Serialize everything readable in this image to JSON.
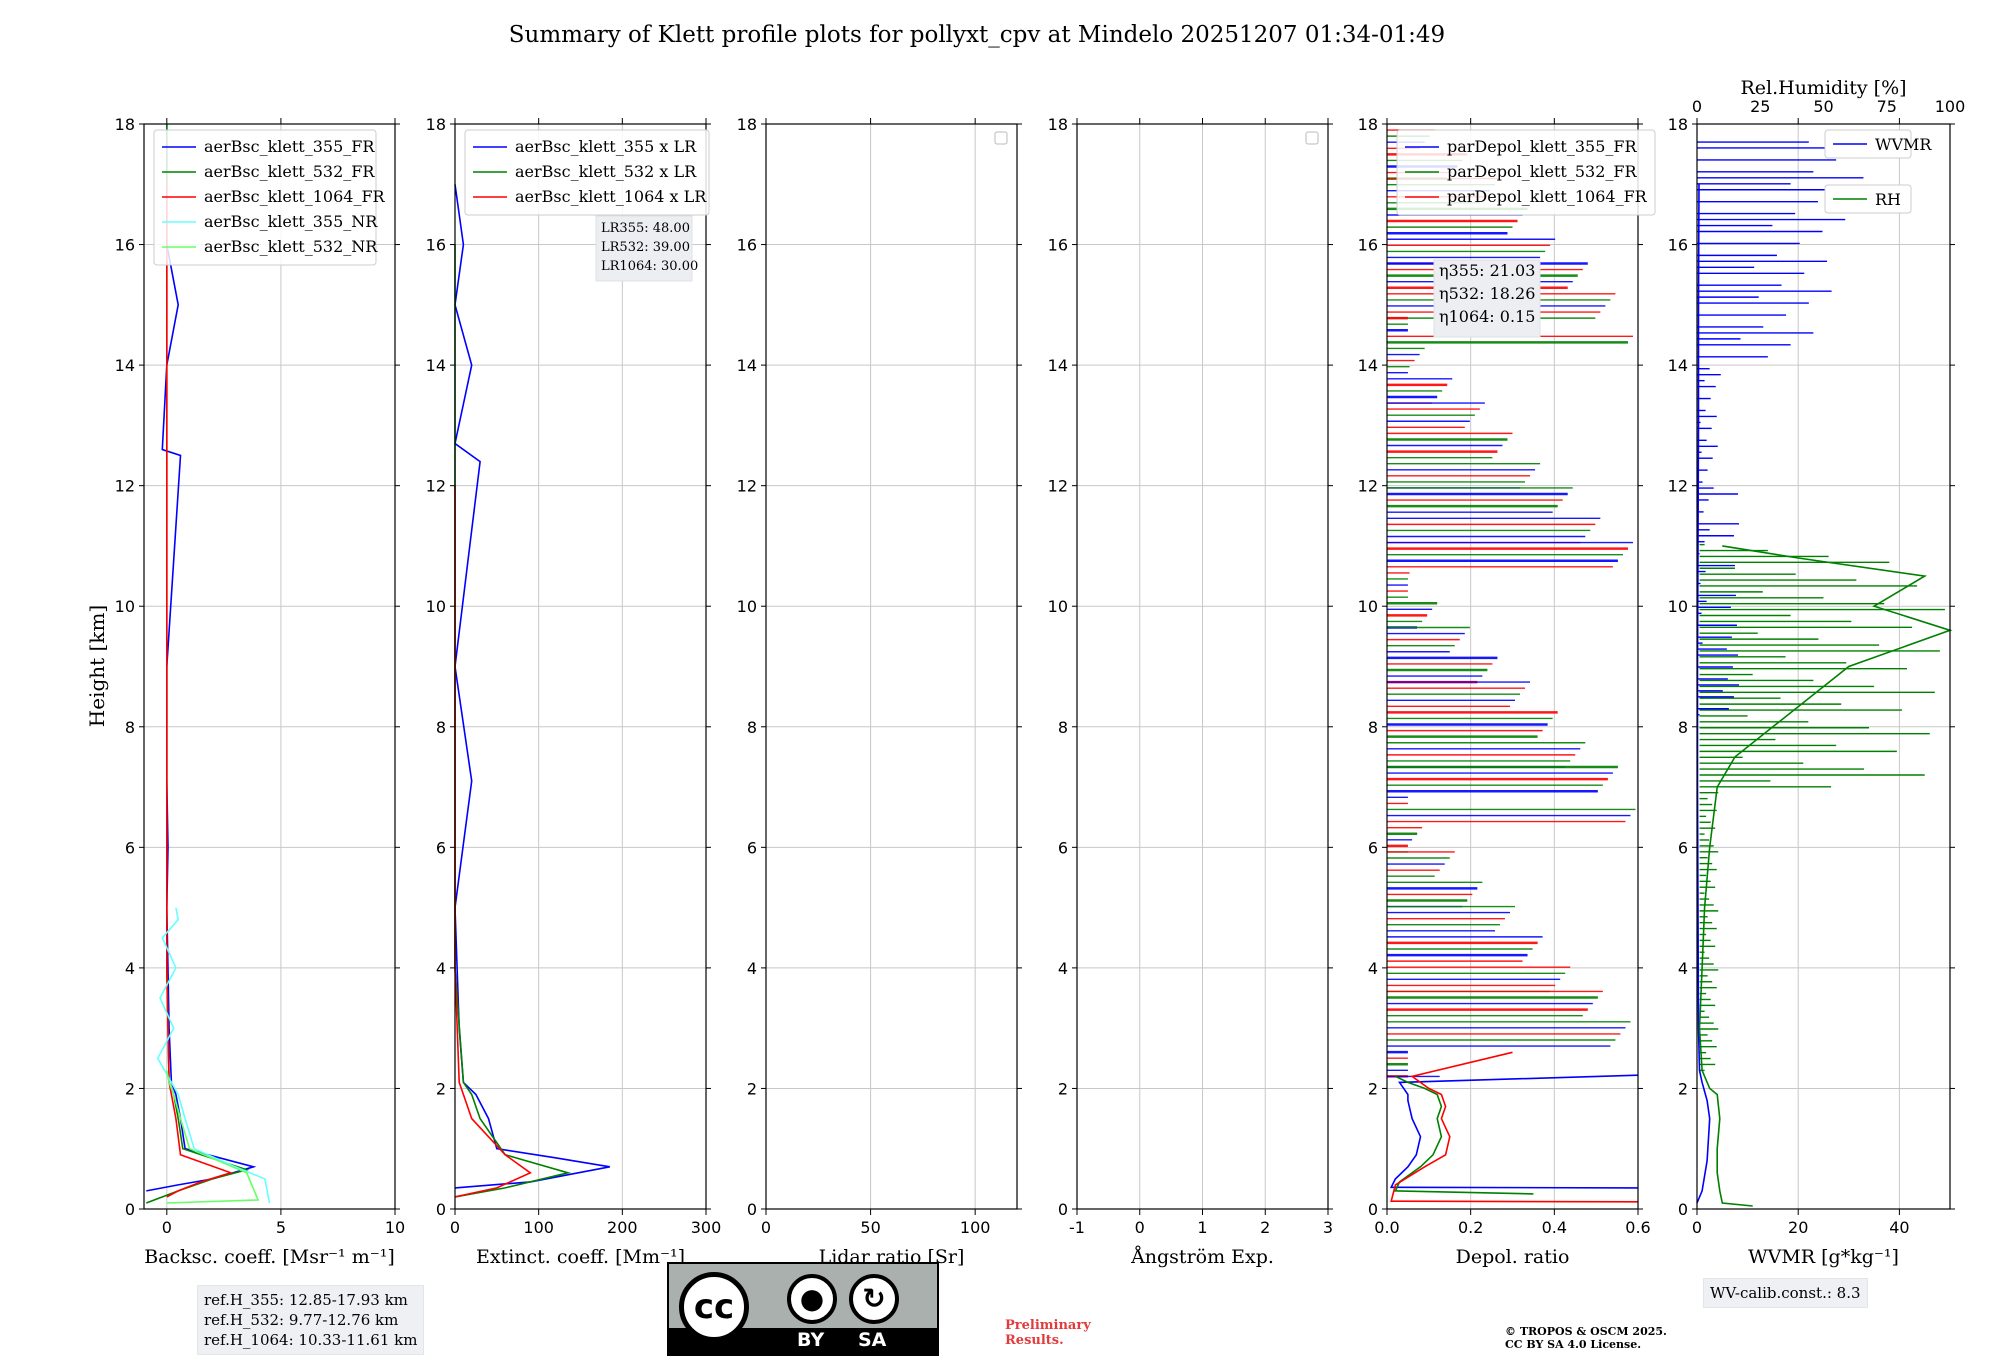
{
  "title": "Summary of Klett profile plots for pollyxt_cpv at Mindelo 20251207 01:34-01:49",
  "y_label": "Height [km]",
  "ref_heights": [
    "ref.H_355: 12.85-17.93 km",
    "ref.H_532: 9.77-12.76 km",
    "ref.H_1064: 10.33-11.61 km"
  ],
  "wv_calib": "WV-calib.const.: 8.3",
  "preliminary": [
    "Preliminary",
    "Results."
  ],
  "copyright": [
    "© TROPOS & OSCM 2025.",
    "CC BY SA 4.0 License."
  ],
  "license_badge": {
    "cc": "cc",
    "by": "BY",
    "sa": "SA"
  },
  "colors": {
    "blue": "#0000ff",
    "green": "#008000",
    "red": "#ff0000",
    "cyan": "#66ffff",
    "lightgreen": "#66ff66"
  },
  "chart_data": [
    {
      "type": "line",
      "xlabel": "Backsc. coeff. [Msr⁻¹ m⁻¹]",
      "xlim": [
        -1,
        10
      ],
      "ylim": [
        0,
        18
      ],
      "xticks": [
        0,
        5,
        10
      ],
      "yticks": [
        0,
        2,
        4,
        6,
        8,
        10,
        12,
        14,
        16,
        18
      ],
      "legend": "top-left",
      "series": [
        {
          "name": "aerBsc_klett_355_FR",
          "color": "blue",
          "x": [
            -0.9,
            0.5,
            2.0,
            3.8,
            0.8,
            0.6,
            0.4,
            0.2,
            0.1,
            0.0,
            0.05,
            0.0,
            0.0,
            0.6,
            -0.2,
            0.0,
            0.5,
            0.0,
            0.0,
            0.0
          ],
          "y": [
            0.3,
            0.4,
            0.5,
            0.7,
            1.0,
            1.5,
            1.9,
            2.1,
            3.0,
            5.0,
            6.0,
            7.1,
            9.0,
            12.5,
            12.6,
            14.0,
            15.0,
            16.0,
            17.0,
            18.0
          ]
        },
        {
          "name": "aerBsc_klett_532_FR",
          "color": "green",
          "x": [
            -0.9,
            0.5,
            2.0,
            3.5,
            0.7,
            0.5,
            0.3,
            0.1,
            0.0,
            0.0,
            0.0,
            0.0,
            0.0
          ],
          "y": [
            0.1,
            0.3,
            0.5,
            0.65,
            1.0,
            1.5,
            1.9,
            2.1,
            4.0,
            8.0,
            12.0,
            16.0,
            18.0
          ]
        },
        {
          "name": "aerBsc_klett_1064_FR",
          "color": "red",
          "x": [
            0.0,
            0.5,
            1.5,
            2.8,
            0.6,
            0.4,
            0.2,
            0.1,
            0.0,
            0.0,
            0.0,
            0.0
          ],
          "y": [
            0.2,
            0.3,
            0.45,
            0.6,
            0.9,
            1.5,
            1.9,
            2.1,
            4.0,
            8.0,
            12.0,
            17.0
          ]
        },
        {
          "name": "aerBsc_klett_355_NR",
          "color": "cyan",
          "x": [
            4.5,
            4.3,
            3.0,
            1.2,
            0.8,
            0.5,
            0.2,
            -0.4,
            0.3,
            -0.3,
            0.4,
            -0.2,
            0.5,
            0.4
          ],
          "y": [
            0.1,
            0.5,
            0.7,
            1.0,
            1.5,
            1.9,
            2.1,
            2.5,
            3.0,
            3.5,
            4.0,
            4.5,
            4.8,
            5.0
          ]
        },
        {
          "name": "aerBsc_klett_532_NR",
          "color": "lightgreen",
          "x": [
            0.0,
            4.0,
            3.5,
            1.0,
            0.6,
            0.3,
            0.1,
            0.0
          ],
          "y": [
            0.1,
            0.15,
            0.6,
            1.0,
            1.5,
            1.9,
            2.1,
            2.3
          ]
        }
      ]
    },
    {
      "type": "line",
      "xlabel": "Extinct. coeff. [Mm⁻¹]",
      "xlim": [
        0,
        300
      ],
      "ylim": [
        0,
        18
      ],
      "xticks": [
        0,
        100,
        200,
        300
      ],
      "yticks": [
        0,
        2,
        4,
        6,
        8,
        10,
        12,
        14,
        16,
        18
      ],
      "legend": "top-left",
      "annotation": [
        "LR355: 48.00",
        "LR532: 39.00",
        "LR1064: 30.00"
      ],
      "series": [
        {
          "name": "aerBsc_klett_355 x LR",
          "color": "blue",
          "x": [
            0,
            90,
            185,
            120,
            50,
            40,
            25,
            10,
            5,
            0,
            20,
            0,
            30,
            0,
            20,
            0,
            10,
            0
          ],
          "y": [
            0.35,
            0.45,
            0.7,
            0.85,
            1.0,
            1.5,
            1.9,
            2.1,
            3.0,
            5.0,
            7.1,
            9.0,
            12.4,
            12.7,
            14.0,
            15.0,
            16.0,
            17.0
          ]
        },
        {
          "name": "aerBsc_klett_532 x LR",
          "color": "green",
          "x": [
            0,
            60,
            135,
            60,
            30,
            20,
            10,
            0,
            0,
            0,
            0
          ],
          "y": [
            0.2,
            0.35,
            0.6,
            0.9,
            1.5,
            1.9,
            2.1,
            4.0,
            8.0,
            12.0,
            16.0
          ]
        },
        {
          "name": "aerBsc_klett_1064 x LR",
          "color": "red",
          "x": [
            0,
            50,
            90,
            60,
            20,
            10,
            5,
            0,
            0,
            0
          ],
          "y": [
            0.2,
            0.35,
            0.6,
            0.9,
            1.5,
            1.9,
            2.1,
            4.0,
            8.0,
            12.0
          ]
        }
      ]
    },
    {
      "type": "line",
      "xlabel": "Lidar ratio [Sr]",
      "xlim": [
        0,
        120
      ],
      "ylim": [
        0,
        18
      ],
      "xticks": [
        0,
        50,
        100
      ],
      "yticks": [
        0,
        2,
        4,
        6,
        8,
        10,
        12,
        14,
        16,
        18
      ],
      "legend": "top-right",
      "series": []
    },
    {
      "type": "line",
      "xlabel": "Ångström Exp.",
      "xlim": [
        -1,
        3
      ],
      "ylim": [
        0,
        18
      ],
      "xticks": [
        -1,
        0,
        1,
        2,
        3
      ],
      "yticks": [
        0,
        2,
        4,
        6,
        8,
        10,
        12,
        14,
        16,
        18
      ],
      "legend": "top-right",
      "series": []
    },
    {
      "type": "line",
      "xlabel": "Depol. ratio",
      "xlim": [
        0,
        0.6
      ],
      "ylim": [
        0,
        18
      ],
      "xticks": [
        0.0,
        0.2,
        0.4,
        0.6
      ],
      "yticks": [
        0,
        2,
        4,
        6,
        8,
        10,
        12,
        14,
        16,
        18
      ],
      "legend": "top-left",
      "annotation": [
        "η355: 21.03",
        "η532: 18.26",
        "η1064: 0.15"
      ],
      "series": [
        {
          "name": "parDepol_klett_355_FR",
          "color": "blue",
          "x": [
            0.6,
            0.01,
            0.02,
            0.05,
            0.07,
            0.08,
            0.06,
            0.05,
            0.05,
            0.04,
            0.03,
            0.6
          ],
          "y": [
            0.35,
            0.36,
            0.5,
            0.7,
            0.9,
            1.2,
            1.5,
            1.8,
            1.9,
            2.0,
            2.1,
            2.22
          ]
        },
        {
          "name": "parDepol_klett_532_FR",
          "color": "green",
          "x": [
            0.35,
            0.02,
            0.03,
            0.08,
            0.11,
            0.13,
            0.12,
            0.13,
            0.12,
            0.09,
            0.05,
            0.02
          ],
          "y": [
            0.25,
            0.3,
            0.45,
            0.7,
            0.9,
            1.2,
            1.5,
            1.7,
            1.9,
            2.0,
            2.1,
            2.2
          ]
        },
        {
          "name": "parDepol_klett_1064_FR",
          "color": "red",
          "x": [
            0.6,
            0.01,
            0.02,
            0.09,
            0.14,
            0.15,
            0.13,
            0.14,
            0.13,
            0.1,
            0.06,
            0.3
          ],
          "y": [
            0.12,
            0.13,
            0.4,
            0.7,
            0.9,
            1.2,
            1.5,
            1.7,
            1.9,
            2.0,
            2.2,
            2.6
          ]
        }
      ]
    },
    {
      "type": "line",
      "xlabel": "WVMR [g*kg⁻¹]",
      "x2label": "Rel.Humidity [%]",
      "xlim": [
        0,
        50
      ],
      "x2lim": [
        0,
        100
      ],
      "ylim": [
        0,
        18
      ],
      "xticks": [
        0,
        20,
        40
      ],
      "x2ticks": [
        0,
        25,
        50,
        75,
        100
      ],
      "yticks": [
        0,
        2,
        4,
        6,
        8,
        10,
        12,
        14,
        16,
        18
      ],
      "legend": "top-right",
      "series": [
        {
          "name": "WVMR",
          "color": "blue",
          "x": [
            0,
            1,
            2,
            2.5,
            2.0,
            1.5,
            1.0,
            0.5,
            0.3,
            0.2,
            0.1,
            0.1,
            0.2,
            0.3,
            0.3,
            0.4
          ],
          "y": [
            0.1,
            0.3,
            0.8,
            1.5,
            1.8,
            1.95,
            2.1,
            2.3,
            3.0,
            5.0,
            7.0,
            9.0,
            11.0,
            13.0,
            15.0,
            17.0
          ]
        },
        {
          "name": "RH",
          "color": "green",
          "x": [
            22,
            10,
            9,
            8,
            8,
            9,
            8,
            5,
            2,
            1,
            2,
            3,
            5,
            8,
            15,
            30,
            60,
            100,
            70,
            90,
            40,
            10
          ],
          "y": [
            0.05,
            0.1,
            0.3,
            0.6,
            1.0,
            1.5,
            1.9,
            2.0,
            2.3,
            3.0,
            4.0,
            5.0,
            6.0,
            7.0,
            7.5,
            8.0,
            9.0,
            9.6,
            10.0,
            10.5,
            10.8,
            11.0
          ]
        }
      ]
    }
  ]
}
